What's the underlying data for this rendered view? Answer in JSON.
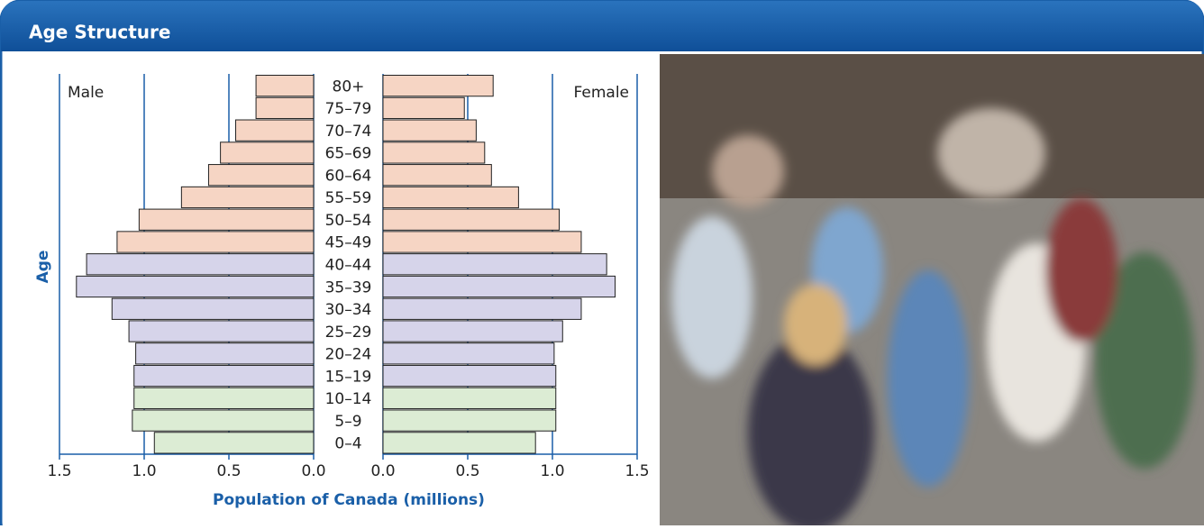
{
  "chart_data": {
    "type": "population-pyramid",
    "title": "Age Structure",
    "xlabel": "Population of Canada (millions)",
    "ylabel": "Age",
    "categories": [
      "80+",
      "75–79",
      "70–74",
      "65–69",
      "60–64",
      "55–59",
      "50–54",
      "45–49",
      "40–44",
      "35–39",
      "30–34",
      "25–29",
      "20–24",
      "15–19",
      "10–14",
      "5–9",
      "0–4"
    ],
    "colors": [
      "#f6d5c4",
      "#f6d5c4",
      "#f6d5c4",
      "#f6d5c4",
      "#f6d5c4",
      "#f6d5c4",
      "#f6d5c4",
      "#f6d5c4",
      "#d6d4ea",
      "#d6d4ea",
      "#d6d4ea",
      "#d6d4ea",
      "#d6d4ea",
      "#d6d4ea",
      "#dcecd4",
      "#dcecd4",
      "#dcecd4"
    ],
    "series": [
      {
        "name": "Male",
        "values": [
          0.34,
          0.34,
          0.46,
          0.55,
          0.62,
          0.78,
          1.03,
          1.16,
          1.34,
          1.4,
          1.19,
          1.09,
          1.05,
          1.06,
          1.06,
          1.07,
          0.94
        ]
      },
      {
        "name": "Female",
        "values": [
          0.65,
          0.48,
          0.55,
          0.6,
          0.64,
          0.8,
          1.04,
          1.17,
          1.32,
          1.37,
          1.17,
          1.06,
          1.01,
          1.02,
          1.02,
          1.02,
          0.9
        ]
      }
    ],
    "xlim": [
      0,
      1.5
    ],
    "xticks": [
      {
        "value": 0,
        "label": "0.0"
      },
      0.5,
      {
        "value": 1,
        "label": "1.0"
      },
      1.5
    ],
    "grid": true,
    "axis_color": "#1a5fa8"
  }
}
